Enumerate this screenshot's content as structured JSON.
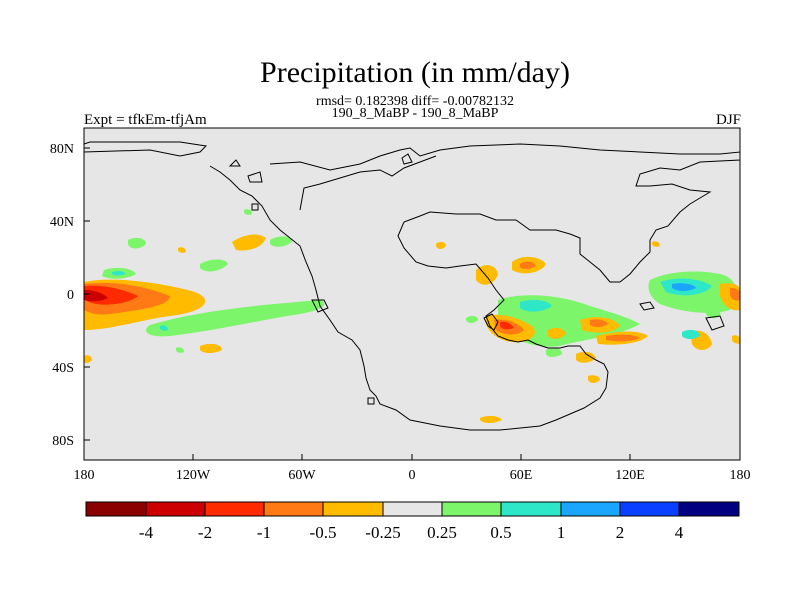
{
  "plot": {
    "title": "Precipitation (in mm/day)",
    "stats": "rmsd= 0.182398 diff= -0.00782132",
    "subtitle": "190_8_MaBP - 190_8_MaBP",
    "left_label": "Expt = tfkEm-tfjAm",
    "right_label": "DJF"
  },
  "map_data": {
    "type": "filled-contour-map",
    "projection": "cylindrical-equidistant",
    "x_ticks": [
      "180",
      "120W",
      "60W",
      "0",
      "60E",
      "120E",
      "180"
    ],
    "y_ticks": [
      "80N",
      "40N",
      "0",
      "40S",
      "80S"
    ],
    "colorbar": {
      "labels": [
        "-4",
        "-2",
        "-1",
        "-0.5",
        "-0.25",
        "0.25",
        "0.5",
        "1",
        "2",
        "4"
      ],
      "colors": [
        "#8b0000",
        "#cc0000",
        "#ff2a00",
        "#ff7a14",
        "#ffbb00",
        "#e6e6e6",
        "#7df56a",
        "#2ee6c8",
        "#1aa6ff",
        "#0b3fff",
        "#000080"
      ]
    },
    "background_color": "#e6e6e6"
  }
}
